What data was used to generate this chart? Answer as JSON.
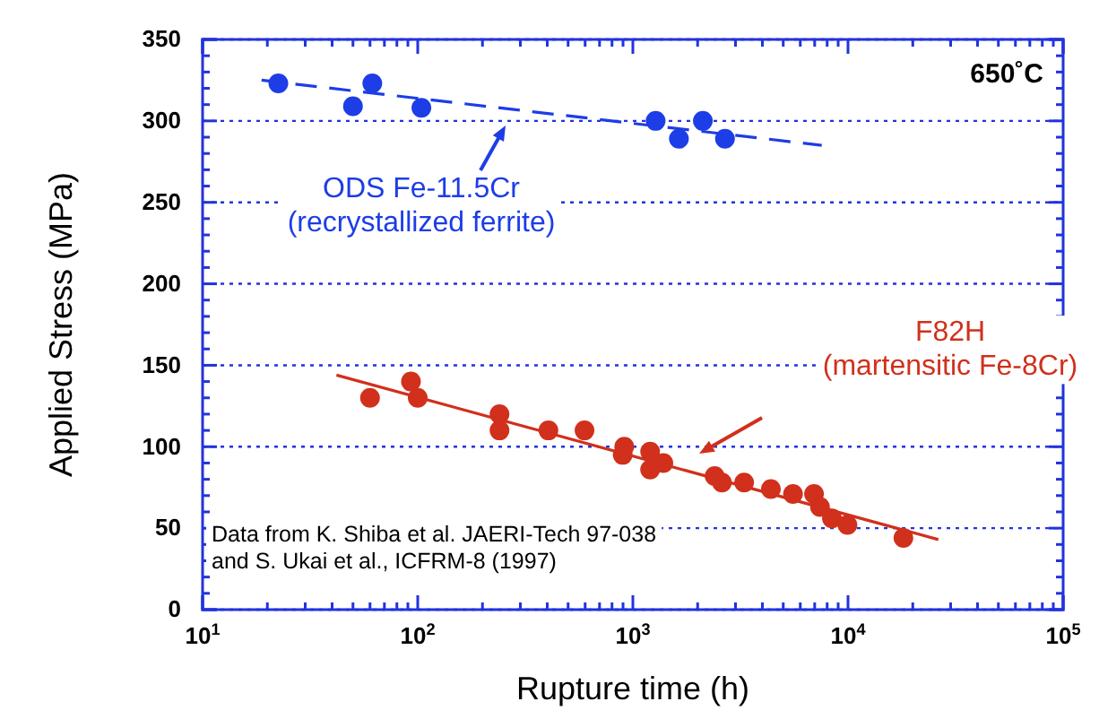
{
  "chart_data": {
    "type": "scatter",
    "xlabel": "Rupture time (h)",
    "ylabel": "Applied Stress (MPa)",
    "log": "x",
    "grid": "y",
    "xlim": [
      10,
      100000
    ],
    "xticks": [
      {
        "value": 10,
        "label": "10$^{1}$"
      },
      {
        "value": 100,
        "label": "10$^{2}$"
      },
      {
        "value": 1000,
        "label": "10$^{3}$"
      },
      {
        "value": 10000,
        "label": "10$^{4}$"
      },
      {
        "value": 100000,
        "label": "10$^{5}$"
      }
    ],
    "ylim": [
      0,
      350
    ],
    "yticks": [
      0,
      50,
      100,
      150,
      200,
      250,
      300,
      350
    ],
    "series": [
      {
        "marker": "circle",
        "color": "#1d3de6",
        "x": [
          22.5,
          50,
          61.5,
          104,
          1276,
          1637,
          2115,
          2680
        ],
        "values": [
          323,
          309,
          323,
          308,
          300,
          289,
          300,
          289
        ]
      },
      {
        "type": "line",
        "marker": "none",
        "line_style": "dashed",
        "color": "#1d3de6",
        "x": [
          18.8,
          7550
        ],
        "values": [
          325,
          285
        ]
      },
      {
        "marker": "circle",
        "color": "#d1301c",
        "x": [
          60,
          93,
          100,
          240,
          240,
          405,
          596,
          912,
          897,
          1203,
          1203,
          1386,
          2400,
          2594,
          3290,
          4380,
          5550,
          6950,
          7410,
          8420,
          9940,
          18100
        ],
        "values": [
          130,
          140,
          130,
          120,
          110,
          110,
          110,
          100,
          95,
          97,
          86,
          90,
          82,
          78,
          78,
          74,
          71,
          71,
          63,
          56,
          52,
          44
        ]
      },
      {
        "type": "line",
        "marker": "none",
        "line_style": "solid",
        "color": "#d1301c",
        "x": [
          41.9,
          26300
        ],
        "values": [
          144,
          43
        ]
      }
    ],
    "annotations": [
      "ODS Fe-11.5Cr\n(recrystallized ferrite)",
      "F82H\n(martensitic Fe-8Cr)",
      "650˚C",
      "Data from K. Shiba et al. JAERI-Tech 97-038\nand S. Ukai et al., ICFRM-8 (1997)"
    ]
  }
}
